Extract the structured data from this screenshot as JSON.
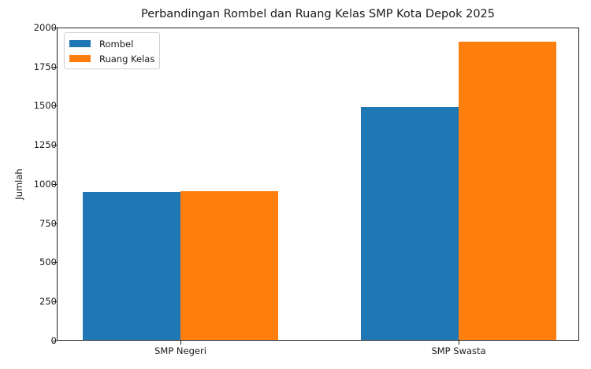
{
  "chart_data": {
    "type": "bar",
    "title": "Perbandingan Rombel dan Ruang Kelas SMP Kota Depok 2025",
    "xlabel": "",
    "ylabel": "Jumlah",
    "categories": [
      "SMP Negeri",
      "SMP Swasta"
    ],
    "series": [
      {
        "name": "Rombel",
        "color": "#1f77b4",
        "values": [
          947,
          1489
        ]
      },
      {
        "name": "Ruang Kelas",
        "color": "#ff7f0e",
        "values": [
          950,
          1905
        ]
      }
    ],
    "ylim": [
      0,
      2000
    ],
    "yticks": [
      "0",
      "250",
      "500",
      "750",
      "1000",
      "1250",
      "1500",
      "1750",
      "2000"
    ],
    "grid": false,
    "legend_position": "upper left"
  }
}
